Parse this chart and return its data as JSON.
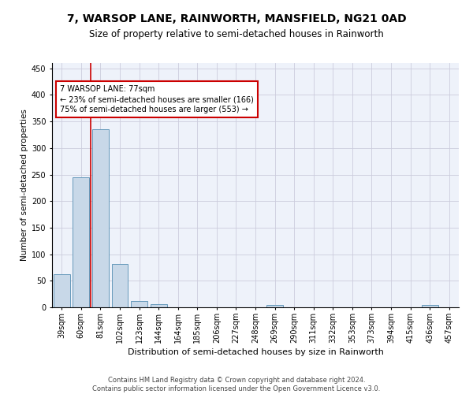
{
  "title": "7, WARSOP LANE, RAINWORTH, MANSFIELD, NG21 0AD",
  "subtitle": "Size of property relative to semi-detached houses in Rainworth",
  "xlabel": "Distribution of semi-detached houses by size in Rainworth",
  "ylabel": "Number of semi-detached properties",
  "bar_color": "#c8d8e8",
  "bar_edge_color": "#6699bb",
  "bins": [
    "39sqm",
    "60sqm",
    "81sqm",
    "102sqm",
    "123sqm",
    "144sqm",
    "164sqm",
    "185sqm",
    "206sqm",
    "227sqm",
    "248sqm",
    "269sqm",
    "290sqm",
    "311sqm",
    "332sqm",
    "353sqm",
    "373sqm",
    "394sqm",
    "415sqm",
    "436sqm",
    "457sqm"
  ],
  "values": [
    62,
    245,
    336,
    81,
    12,
    6,
    0,
    0,
    0,
    0,
    0,
    5,
    0,
    0,
    0,
    0,
    0,
    0,
    0,
    5,
    0
  ],
  "property_bin_index": 1,
  "annotation_text": "7 WARSOP LANE: 77sqm\n← 23% of semi-detached houses are smaller (166)\n75% of semi-detached houses are larger (553) →",
  "vline_color": "#cc0000",
  "annotation_box_edge": "#cc0000",
  "ylim": [
    0,
    460
  ],
  "yticks": [
    0,
    50,
    100,
    150,
    200,
    250,
    300,
    350,
    400,
    450
  ],
  "footer": "Contains HM Land Registry data © Crown copyright and database right 2024.\nContains public sector information licensed under the Open Government Licence v3.0.",
  "background_color": "#eef2fa",
  "grid_color": "#ccccdd",
  "title_fontsize": 10,
  "subtitle_fontsize": 8.5,
  "xlabel_fontsize": 8,
  "ylabel_fontsize": 7.5,
  "footer_fontsize": 6,
  "tick_fontsize": 7
}
